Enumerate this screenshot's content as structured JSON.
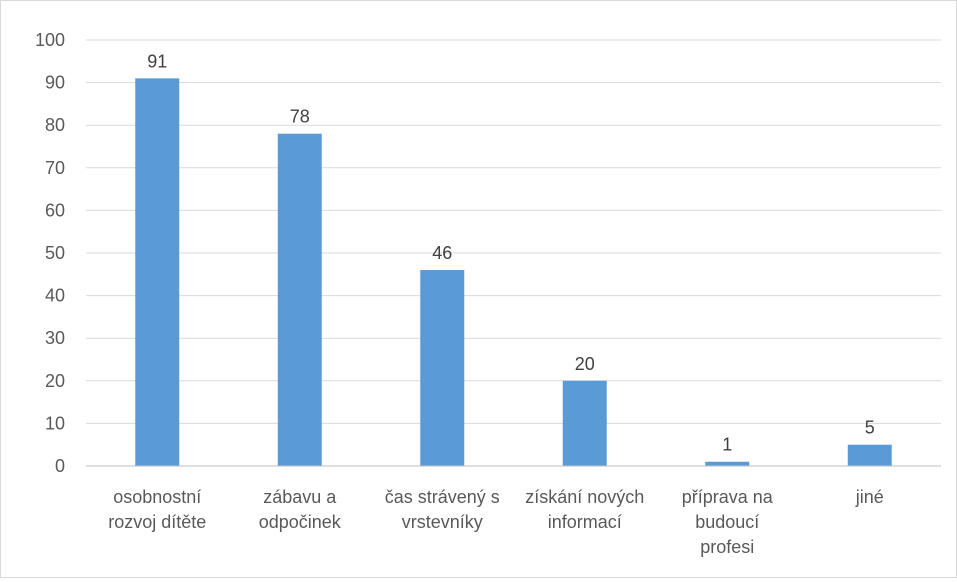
{
  "chart_data": {
    "type": "bar",
    "title": "",
    "xlabel": "",
    "ylabel": "",
    "ylim": [
      0,
      100
    ],
    "ytick_step": 10,
    "yticks": [
      "0",
      "10",
      "20",
      "30",
      "40",
      "50",
      "60",
      "70",
      "80",
      "90",
      "100"
    ],
    "grid": true,
    "legend": "none",
    "bar_color": "#5b9bd5",
    "categories": [
      [
        "osobnostní",
        "rozvoj dítěte"
      ],
      [
        "zábavu a",
        "odpočinek"
      ],
      [
        "čas strávený s",
        "vrstevníky"
      ],
      [
        "získání nových",
        "informací"
      ],
      [
        "příprava na",
        "budoucí",
        "profesi"
      ],
      [
        "jiné"
      ]
    ],
    "values": [
      91,
      78,
      46,
      20,
      1,
      5
    ],
    "data_labels": [
      "91",
      "78",
      "46",
      "20",
      "1",
      "5"
    ]
  }
}
